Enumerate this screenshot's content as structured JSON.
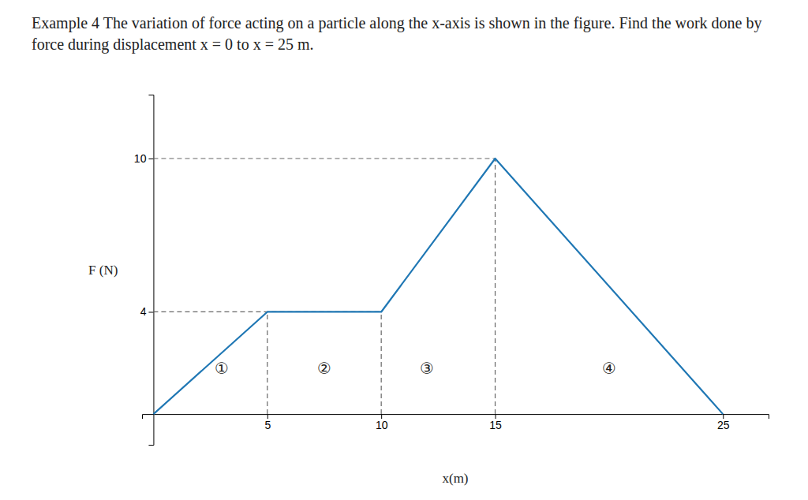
{
  "chart_data": {
    "type": "line",
    "title": "Example 4 The variation of force acting on a particle along the x-axis is shown in the figure. Find the work done by force during displacement x = 0 to x = 25 m.",
    "xlabel": "x(m)",
    "ylabel": "F (N)",
    "x": [
      0,
      5,
      10,
      15,
      25
    ],
    "values": [
      0,
      4,
      4,
      10,
      0
    ],
    "xlim": [
      -0.5,
      27
    ],
    "ylim": [
      -1.2,
      12.5
    ],
    "xticks": [
      5,
      10,
      15,
      25
    ],
    "yticks": [
      4,
      10
    ],
    "grid": false,
    "guides": [
      {
        "x": [
          0,
          15
        ],
        "y": [
          10,
          10
        ]
      },
      {
        "x": [
          0,
          10
        ],
        "y": [
          4,
          4
        ]
      },
      {
        "x": [
          5,
          5
        ],
        "y": [
          0,
          4
        ]
      },
      {
        "x": [
          10,
          10
        ],
        "y": [
          0,
          4
        ]
      },
      {
        "x": [
          15,
          15
        ],
        "y": [
          0,
          10
        ]
      }
    ],
    "line_style": "dashed",
    "annotations": [
      {
        "text": "①",
        "x": 3.0,
        "y": 1.8
      },
      {
        "text": "②",
        "x": 7.5,
        "y": 1.8
      },
      {
        "text": "③",
        "x": 12.0,
        "y": 1.8
      },
      {
        "text": "④",
        "x": 20.0,
        "y": 1.8
      }
    ]
  }
}
